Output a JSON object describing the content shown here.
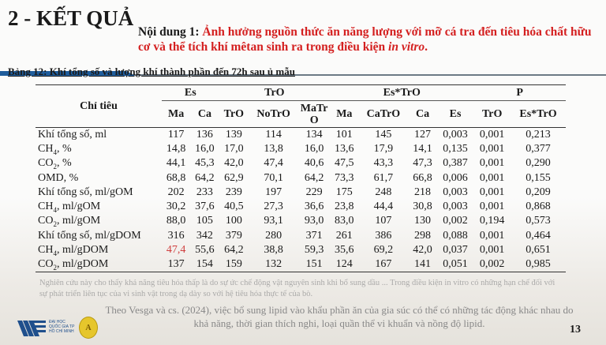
{
  "slide": {
    "title": "2 - KẾT QUẢ",
    "content_label": "Nội dung 1: ",
    "content_text": "Ảnh hưởng nguồn thức ăn năng lượng với mỡ cá tra đến tiêu hóa chất hữu cơ và thể tích khí mêtan sinh ra trong điều kiện ",
    "content_italic": "in vitro",
    "content_end": ".",
    "caption": "Bảng 12: Khí tổng số và lượng khí thành phần đến 72h sau ủ mẫu",
    "page_number": "13",
    "footer_faded": "Nghiên cứu này cho thấy khả năng tiêu hóa thấp là do sự ức chế động vật nguyên sinh khi bổ sung dầu ... Trong điều kiện in vitro có những hạn chế đối với sự phát triển liên tục của vi sinh vật trong dạ dày so với hệ tiêu hóa thực tế của bò.",
    "footer_note": "Theo Vesga và cs. (2024), việc bổ sung lipid vào khẩu phần ăn của gia súc có thể có những tác động khác nhau do khả năng, thời gian thích nghi, loại quần thể vi khuẩn và nồng độ lipid.",
    "logo_text": "ĐẠI HỌC QUỐC GIA TP HỒ CHÍ MINH",
    "logo2_text": "A",
    "colors": {
      "accent_blue": "#1f5d9c",
      "highlight_red": "#d42020"
    }
  },
  "table": {
    "row_header": "Chỉ tiêu",
    "groups": [
      "Es",
      "TrO",
      "Es*TrO",
      "P"
    ],
    "columns": [
      "Ma",
      "Ca",
      "TrO",
      "NoTrO",
      "MaTrO",
      "Ma",
      "CaTrO",
      "Ca",
      "Es",
      "TrO",
      "Es*TrO"
    ],
    "rows": [
      {
        "name": "Khí tổng số, ml",
        "sub": "",
        "unit": "",
        "values": [
          "117",
          "136",
          "139",
          "114",
          "134",
          "101",
          "145",
          "127",
          "0,003",
          "0,001",
          "0,213"
        ]
      },
      {
        "name": "CH",
        "sub": "4",
        "unit": ", %",
        "values": [
          "14,8",
          "16,0",
          "17,0",
          "13,8",
          "16,0",
          "13,6",
          "17,9",
          "14,1",
          "0,135",
          "0,001",
          "0,377"
        ]
      },
      {
        "name": "CO",
        "sub": "2",
        "unit": ", %",
        "values": [
          "44,1",
          "45,3",
          "42,0",
          "47,4",
          "40,6",
          "47,5",
          "43,3",
          "47,3",
          "0,387",
          "0,001",
          "0,290"
        ]
      },
      {
        "name": "OMD, %",
        "sub": "",
        "unit": "",
        "values": [
          "68,8",
          "64,2",
          "62,9",
          "70,1",
          "64,2",
          "73,3",
          "61,7",
          "66,8",
          "0,006",
          "0,001",
          "0,155"
        ]
      },
      {
        "name": "Khí tổng số, ml/gOM",
        "sub": "",
        "unit": "",
        "values": [
          "202",
          "233",
          "239",
          "197",
          "229",
          "175",
          "248",
          "218",
          "0,003",
          "0,001",
          "0,209"
        ]
      },
      {
        "name": "CH",
        "sub": "4",
        "unit": ", ml/gOM",
        "values": [
          "30,2",
          "37,6",
          "40,5",
          "27,3",
          "36,6",
          "23,8",
          "44,4",
          "30,8",
          "0,003",
          "0,001",
          "0,868"
        ]
      },
      {
        "name": "CO",
        "sub": "2",
        "unit": ", ml/gOM",
        "values": [
          "88,0",
          "105",
          "100",
          "93,1",
          "93,0",
          "83,0",
          "107",
          "130",
          "0,002",
          "0,194",
          "0,573"
        ]
      },
      {
        "name": "Khí tổng số, ml/gDOM",
        "sub": "",
        "unit": "",
        "values": [
          "316",
          "342",
          "379",
          "280",
          "371",
          "261",
          "386",
          "298",
          "0,088",
          "0,001",
          "0,464"
        ]
      },
      {
        "name": "CH",
        "sub": "4",
        "unit": ", ml/gDOM",
        "values": [
          "47,4",
          "55,6",
          "64,2",
          "38,8",
          "59,3",
          "35,6",
          "69,2",
          "42,0",
          "0,037",
          "0,001",
          "0,651"
        ]
      },
      {
        "name": "CO",
        "sub": "2",
        "unit": ", ml/gDOM",
        "values": [
          "137",
          "154",
          "159",
          "132",
          "151",
          "124",
          "167",
          "141",
          "0,051",
          "0,002",
          "0,985"
        ]
      }
    ],
    "highlighted_cell": {
      "row": 8,
      "col": 0,
      "color": "#d04040"
    }
  }
}
